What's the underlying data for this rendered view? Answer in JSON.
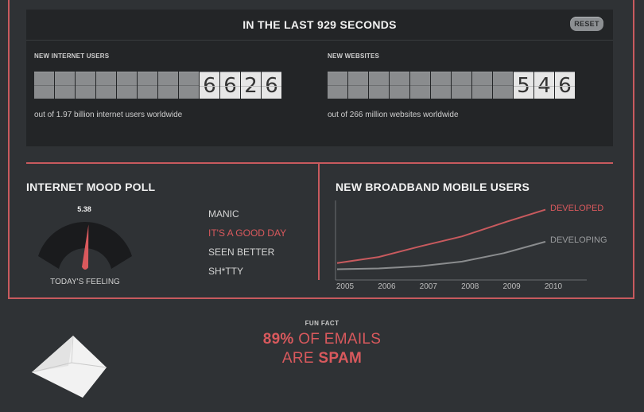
{
  "counter": {
    "title": "IN THE LAST 929 SECONDS",
    "reset_label": "RESET",
    "users": {
      "label": "NEW INTERNET USERS",
      "digits": [
        "",
        "",
        "",
        "",
        "",
        "",
        "",
        "",
        "6",
        "6",
        "2",
        "6"
      ],
      "value": "6626",
      "subtitle": "out of 1.97 billion internet users worldwide"
    },
    "websites": {
      "label": "NEW WEBSITES",
      "digits": [
        "",
        "",
        "",
        "",
        "",
        "",
        "",
        "",
        "",
        "5",
        "4",
        "6"
      ],
      "value": "546",
      "subtitle": "out of 266 million websites worldwide"
    }
  },
  "mood": {
    "title": "INTERNET MOOD POLL",
    "gauge_value": "5.38",
    "gauge_fraction": 0.538,
    "caption": "TODAY'S FEELING",
    "options": [
      "MANIC",
      "IT'S A GOOD DAY",
      "SEEN BETTER",
      "SH*TTY"
    ],
    "active_option": 1
  },
  "broadband": {
    "title": "NEW BROADBAND MOBILE USERS"
  },
  "chart_data": {
    "type": "line",
    "title": "NEW BROADBAND MOBILE USERS",
    "x": [
      "2005",
      "2006",
      "2007",
      "2008",
      "2009",
      "2010"
    ],
    "ylim": [
      0,
      100
    ],
    "series": [
      {
        "name": "DEVELOPED",
        "color": "#c85a5e",
        "values": [
          20,
          28,
          42,
          55,
          73,
          90
        ]
      },
      {
        "name": "DEVELOPING",
        "color": "#8a8c8e",
        "values": [
          12,
          13,
          16,
          22,
          33,
          48
        ]
      }
    ],
    "grid": false,
    "legend": "right"
  },
  "funfact": {
    "label": "FUN FACT",
    "line1_em": "89%",
    "line1_rest": " OF EMAILS",
    "line2_plain": "ARE ",
    "line2_em": "SPAM"
  },
  "colors": {
    "accent": "#c85a5e",
    "background": "#2f3235",
    "panel": "#232527"
  }
}
